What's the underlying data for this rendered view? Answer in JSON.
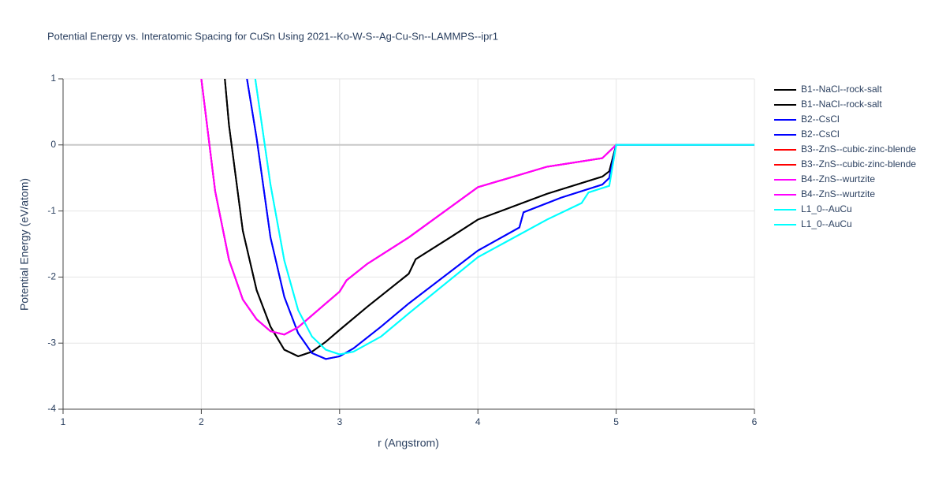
{
  "chart_data": {
    "type": "line",
    "title": "Potential Energy vs. Interatomic Spacing for CuSn Using 2021--Ko-W-S--Ag-Cu-Sn--LAMMPS--ipr1",
    "xlabel": "r (Angstrom)",
    "ylabel": "Potential Energy (eV/atom)",
    "xlim": [
      1,
      6
    ],
    "ylim": [
      -4,
      1
    ],
    "xticks": [
      1,
      2,
      3,
      4,
      5,
      6
    ],
    "yticks": [
      -4,
      -3,
      -2,
      -1,
      0,
      1
    ],
    "grid": true,
    "series": [
      {
        "name": "B1--NaCl--rock-salt",
        "color": "#000000",
        "x": [
          2.17,
          2.2,
          2.3,
          2.4,
          2.5,
          2.6,
          2.7,
          2.8,
          2.9,
          3.0,
          3.2,
          3.5,
          3.55,
          3.8,
          4.0,
          4.5,
          4.9,
          4.95,
          5.0,
          6.0
        ],
        "values": [
          1,
          0.3,
          -1.3,
          -2.2,
          -2.75,
          -3.1,
          -3.2,
          -3.13,
          -2.98,
          -2.8,
          -2.45,
          -1.95,
          -1.73,
          -1.4,
          -1.13,
          -0.74,
          -0.48,
          -0.4,
          0,
          0
        ]
      },
      {
        "name": "B1--NaCl--rock-salt",
        "color": "#000000",
        "x": [
          2.17,
          2.2,
          2.3,
          2.4,
          2.5,
          2.6,
          2.7,
          2.8,
          2.9,
          3.0,
          3.2,
          3.5,
          3.55,
          3.8,
          4.0,
          4.5,
          4.9,
          4.95,
          5.0,
          6.0
        ],
        "values": [
          1,
          0.3,
          -1.3,
          -2.2,
          -2.75,
          -3.1,
          -3.2,
          -3.13,
          -2.98,
          -2.8,
          -2.45,
          -1.95,
          -1.73,
          -1.4,
          -1.13,
          -0.74,
          -0.48,
          -0.4,
          0,
          0
        ]
      },
      {
        "name": "B2--CsCl",
        "color": "#0000ff",
        "x": [
          2.33,
          2.4,
          2.5,
          2.6,
          2.7,
          2.8,
          2.9,
          3.0,
          3.1,
          3.3,
          3.5,
          4.0,
          4.3,
          4.33,
          4.6,
          4.9,
          4.95,
          5.0,
          6.0
        ],
        "values": [
          1,
          0.1,
          -1.4,
          -2.3,
          -2.85,
          -3.15,
          -3.24,
          -3.2,
          -3.08,
          -2.75,
          -2.4,
          -1.6,
          -1.25,
          -1.02,
          -0.8,
          -0.6,
          -0.5,
          0,
          0
        ]
      },
      {
        "name": "B2--CsCl",
        "color": "#0000ff",
        "x": [
          2.33,
          2.4,
          2.5,
          2.6,
          2.7,
          2.8,
          2.9,
          3.0,
          3.1,
          3.3,
          3.5,
          4.0,
          4.3,
          4.33,
          4.6,
          4.9,
          4.95,
          5.0,
          6.0
        ],
        "values": [
          1,
          0.1,
          -1.4,
          -2.3,
          -2.85,
          -3.15,
          -3.24,
          -3.2,
          -3.08,
          -2.75,
          -2.4,
          -1.6,
          -1.25,
          -1.02,
          -0.8,
          -0.6,
          -0.5,
          0,
          0
        ]
      },
      {
        "name": "B3--ZnS--cubic-zinc-blende",
        "color": "#ff0000",
        "x": [
          2.0,
          2.1,
          2.2,
          2.3,
          2.4,
          2.5,
          2.6,
          2.7,
          2.8,
          2.9,
          3.0,
          3.05,
          3.2,
          3.5,
          4.0,
          4.5,
          4.9,
          5.0,
          6.0
        ],
        "values": [
          1,
          -0.7,
          -1.74,
          -2.34,
          -2.64,
          -2.82,
          -2.87,
          -2.76,
          -2.58,
          -2.4,
          -2.22,
          -2.05,
          -1.8,
          -1.4,
          -0.64,
          -0.33,
          -0.2,
          0,
          0
        ]
      },
      {
        "name": "B3--ZnS--cubic-zinc-blende",
        "color": "#ff0000",
        "x": [
          2.0,
          2.1,
          2.2,
          2.3,
          2.4,
          2.5,
          2.6,
          2.7,
          2.8,
          2.9,
          3.0,
          3.05,
          3.2,
          3.5,
          4.0,
          4.5,
          4.9,
          5.0,
          6.0
        ],
        "values": [
          1,
          -0.7,
          -1.74,
          -2.34,
          -2.64,
          -2.82,
          -2.87,
          -2.76,
          -2.58,
          -2.4,
          -2.22,
          -2.05,
          -1.8,
          -1.4,
          -0.64,
          -0.33,
          -0.2,
          0,
          0
        ]
      },
      {
        "name": "B4--ZnS--wurtzite",
        "color": "#ff00ff",
        "x": [
          2.0,
          2.1,
          2.2,
          2.3,
          2.4,
          2.5,
          2.6,
          2.7,
          2.8,
          2.9,
          3.0,
          3.05,
          3.2,
          3.5,
          4.0,
          4.5,
          4.9,
          5.0,
          6.0
        ],
        "values": [
          1,
          -0.7,
          -1.74,
          -2.34,
          -2.64,
          -2.82,
          -2.87,
          -2.76,
          -2.58,
          -2.4,
          -2.22,
          -2.05,
          -1.8,
          -1.4,
          -0.64,
          -0.33,
          -0.2,
          0,
          0
        ]
      },
      {
        "name": "B4--ZnS--wurtzite",
        "color": "#ff00ff",
        "x": [
          2.0,
          2.1,
          2.2,
          2.3,
          2.4,
          2.5,
          2.6,
          2.7,
          2.8,
          2.9,
          3.0,
          3.05,
          3.2,
          3.5,
          4.0,
          4.5,
          4.9,
          5.0,
          6.0
        ],
        "values": [
          1,
          -0.7,
          -1.74,
          -2.34,
          -2.64,
          -2.82,
          -2.87,
          -2.76,
          -2.58,
          -2.4,
          -2.22,
          -2.05,
          -1.8,
          -1.4,
          -0.64,
          -0.33,
          -0.2,
          0,
          0
        ]
      },
      {
        "name": "L1_0--AuCu",
        "color": "#00ffff",
        "x": [
          2.39,
          2.5,
          2.6,
          2.7,
          2.8,
          2.9,
          3.0,
          3.1,
          3.3,
          3.5,
          4.0,
          4.5,
          4.75,
          4.8,
          4.95,
          5.0,
          6.0
        ],
        "values": [
          1,
          -0.6,
          -1.75,
          -2.5,
          -2.9,
          -3.1,
          -3.17,
          -3.13,
          -2.9,
          -2.55,
          -1.7,
          -1.13,
          -0.88,
          -0.72,
          -0.62,
          0,
          0
        ]
      },
      {
        "name": "L1_0--AuCu",
        "color": "#00ffff",
        "x": [
          2.39,
          2.5,
          2.6,
          2.7,
          2.8,
          2.9,
          3.0,
          3.1,
          3.3,
          3.5,
          4.0,
          4.5,
          4.75,
          4.8,
          4.95,
          5.0,
          6.0
        ],
        "values": [
          1,
          -0.6,
          -1.75,
          -2.5,
          -2.9,
          -3.1,
          -3.17,
          -3.13,
          -2.9,
          -2.55,
          -1.7,
          -1.13,
          -0.88,
          -0.72,
          -0.62,
          0,
          0
        ]
      }
    ]
  }
}
